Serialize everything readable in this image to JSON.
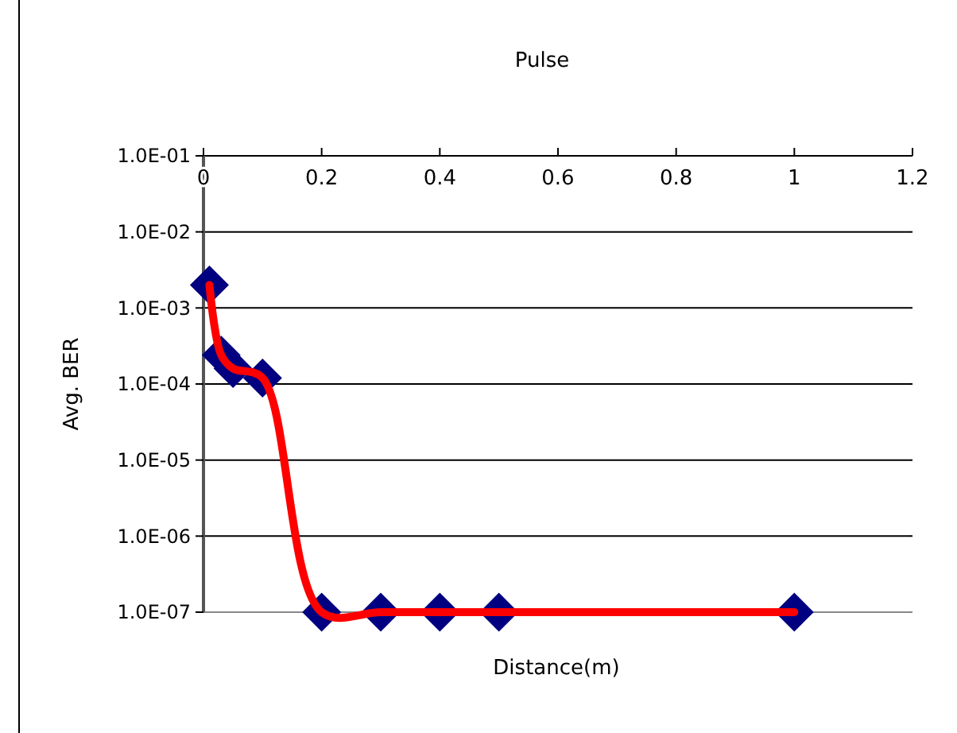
{
  "chart_data": {
    "type": "line",
    "title": "Pulse",
    "xlabel": "Distance(m)",
    "ylabel": "Avg. BER",
    "x": [
      0.01,
      0.03,
      0.05,
      0.1,
      0.2,
      0.3,
      0.4,
      0.5,
      1.0
    ],
    "series": [
      {
        "type": "scatter",
        "marker": "diamond",
        "color": "#000080",
        "values": [
          0.002,
          0.00024,
          0.00016,
          0.00012,
          1e-07,
          1e-07,
          1e-07,
          1e-07,
          1e-07
        ]
      },
      {
        "marker": "none",
        "color": "#ff0000",
        "values": [
          0.002,
          0.00024,
          0.00016,
          0.00012,
          1e-07,
          1e-07,
          1e-07,
          1e-07,
          1e-07
        ]
      }
    ],
    "log": "y",
    "grid": "y",
    "xlim": [
      0,
      1.2
    ],
    "xticks": [
      0,
      0.2,
      0.4,
      0.6,
      0.8,
      1,
      1.2
    ],
    "ylim": [
      1e-07,
      0.1
    ],
    "yticks": [
      {
        "value": 1e-07,
        "label": "1.0E-07"
      },
      {
        "value": 1e-06,
        "label": "1.0E-06"
      },
      {
        "value": 1e-05,
        "label": "1.0E-05"
      },
      {
        "value": 0.0001,
        "label": "1.0E-04"
      },
      {
        "value": 0.001,
        "label": "1.0E-03"
      },
      {
        "value": 0.01,
        "label": "1.0E-02"
      },
      {
        "value": 0.1,
        "label": "1.0E-01"
      }
    ]
  }
}
